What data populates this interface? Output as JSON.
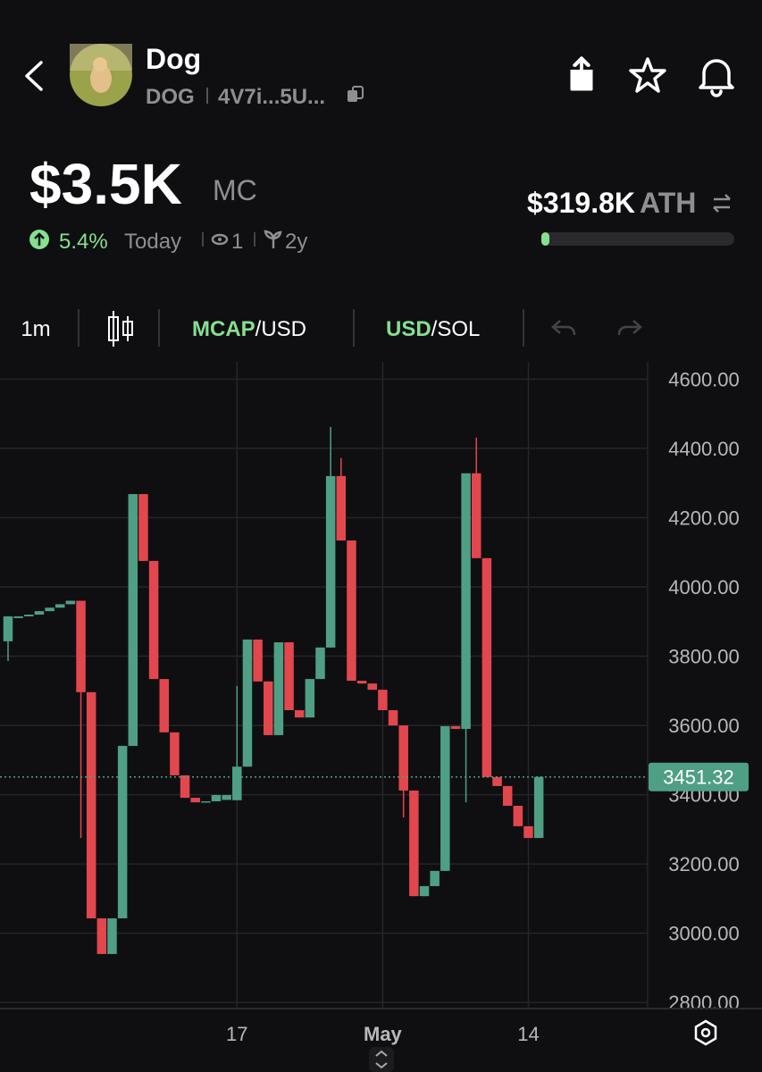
{
  "header": {
    "name": "Dog",
    "symbol": "DOG",
    "address": "4V7i...5U..."
  },
  "stats": {
    "market_cap": "$3.5K",
    "market_cap_unit": "MC",
    "change": "5.4%",
    "change_period": "Today",
    "watchers": "1",
    "age": "2y",
    "ath": "$319.8K",
    "ath_unit": "ATH"
  },
  "toolbar": {
    "interval": "1m",
    "mode_primary": "MCAP",
    "mode_secondary": "/USD",
    "quote_primary": "USD",
    "quote_secondary": "/SOL"
  },
  "chart_data": {
    "type": "candlestick",
    "categories": [
      null,
      null,
      null,
      null,
      null,
      null,
      null,
      null,
      null,
      null,
      null,
      null,
      null,
      null,
      null,
      null,
      null,
      null,
      null,
      null,
      null,
      null,
      "17",
      null,
      null,
      null,
      null,
      null,
      null,
      null,
      null,
      null,
      null,
      null,
      null,
      null,
      "May",
      null,
      null,
      null,
      null,
      null,
      null,
      null,
      null,
      null,
      null,
      null,
      null,
      null,
      "14",
      null
    ],
    "open": [
      3843,
      3910,
      3915,
      3920,
      3930,
      3940,
      3950,
      3960,
      3696,
      3043,
      2940,
      3043,
      3541,
      4268,
      4075,
      3734,
      3580,
      3456,
      3391,
      3378,
      3381,
      3385,
      3384,
      3481,
      3848,
      3727,
      3572,
      3840,
      3644,
      3623,
      3734,
      3825,
      4320,
      4134,
      3729,
      3721,
      3703,
      3644,
      3600,
      3412,
      3107,
      3136,
      3180,
      3598,
      3590,
      4328,
      4083,
      3451,
      3425,
      3368,
      3309,
      3275
    ],
    "high": [
      3915,
      3915,
      3920,
      3930,
      3940,
      3950,
      3960,
      3960,
      3696,
      3043,
      3043,
      3541,
      4268,
      4268,
      4075,
      3734,
      3580,
      3456,
      3391,
      3381,
      3399,
      3399,
      3714,
      3848,
      3848,
      3727,
      3840,
      3840,
      3644,
      3734,
      3825,
      4462,
      4372,
      4134,
      3729,
      3721,
      3703,
      3644,
      3600,
      3412,
      3136,
      3180,
      3598,
      3598,
      4328,
      4431,
      4083,
      3451,
      3425,
      3368,
      3309,
      3451.32
    ],
    "low": [
      3786,
      3910,
      3915,
      3920,
      3930,
      3940,
      3950,
      3275,
      3043,
      2940,
      2940,
      3043,
      3541,
      4075,
      3734,
      3580,
      3456,
      3391,
      3378,
      3378,
      3381,
      3385,
      3384,
      3481,
      3727,
      3572,
      3572,
      3644,
      3623,
      3623,
      3734,
      3825,
      4134,
      3729,
      3721,
      3703,
      3644,
      3600,
      3334,
      3107,
      3107,
      3136,
      3180,
      3590,
      3378,
      4083,
      3451,
      3425,
      3368,
      3309,
      3275,
      3275
    ],
    "close": [
      3915,
      3915,
      3920,
      3930,
      3940,
      3950,
      3960,
      3696,
      3043,
      2940,
      3043,
      3541,
      4268,
      4075,
      3734,
      3580,
      3456,
      3391,
      3378,
      3381,
      3399,
      3399,
      3481,
      3848,
      3727,
      3572,
      3840,
      3644,
      3623,
      3734,
      3825,
      4320,
      4134,
      3729,
      3721,
      3703,
      3644,
      3600,
      3412,
      3107,
      3136,
      3180,
      3598,
      3590,
      4328,
      4083,
      3451,
      3425,
      3368,
      3309,
      3275,
      3451.32
    ],
    "up_color": "#4f9f85",
    "down_color": "#e2474d",
    "ylim": [
      2785,
      4650
    ],
    "yticks": [
      {
        "value": 2800,
        "label": "2800.00"
      },
      {
        "value": 3000,
        "label": "3000.00"
      },
      {
        "value": 3200,
        "label": "3200.00"
      },
      {
        "value": 3400,
        "label": "3400.00"
      },
      {
        "value": 3600,
        "label": "3600.00"
      },
      {
        "value": 3800,
        "label": "3800.00"
      },
      {
        "value": 4000,
        "label": "4000.00"
      },
      {
        "value": 4200,
        "label": "4200.00"
      },
      {
        "value": 4400,
        "label": "4400.00"
      },
      {
        "value": 4600,
        "label": "4600.00"
      }
    ],
    "last_price": 3451.32,
    "grid": true
  }
}
